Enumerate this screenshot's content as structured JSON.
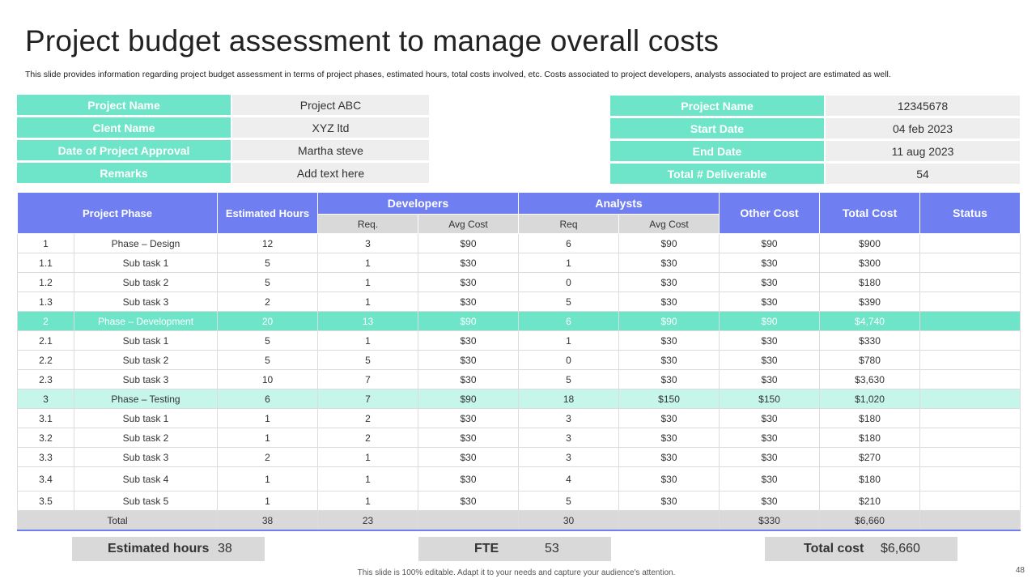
{
  "title": "Project budget assessment to manage overall costs",
  "description": "This slide provides information regarding project budget assessment in terms of project phases, estimated hours, total costs involved, etc. Costs associated to project developers, analysts associated to project are estimated as well.",
  "info_left": [
    {
      "label": "Project Name",
      "value": "Project ABC"
    },
    {
      "label": "Clent Name",
      "value": "XYZ ltd"
    },
    {
      "label": "Date of Project Approval",
      "value": "Martha steve"
    },
    {
      "label": "Remarks",
      "value": "Add text here"
    }
  ],
  "info_right": [
    {
      "label": "Project Name",
      "value": "12345678"
    },
    {
      "label": "Start Date",
      "value": "04 feb 2023"
    },
    {
      "label": "End Date",
      "value": "11 aug 2023"
    },
    {
      "label": "Total # Deliverable",
      "value": "54"
    }
  ],
  "table": {
    "headers": {
      "project_phase": "Project Phase",
      "estimated_hours": "Estimated Hours",
      "developers": "Developers",
      "analysts": "Analysts",
      "dev_req": "Req.",
      "dev_avg": "Avg Cost",
      "an_req": "Req",
      "an_avg": "Avg Cost",
      "other_cost": "Other Cost",
      "total_cost": "Total Cost",
      "status": "Status"
    },
    "rows": [
      [
        "1",
        "Phase – Design",
        "12",
        "3",
        "$90",
        "6",
        "$90",
        "$90",
        "$900",
        ""
      ],
      [
        "1.1",
        "Sub task 1",
        "5",
        "1",
        "$30",
        "1",
        "$30",
        "$30",
        "$300",
        ""
      ],
      [
        "1.2",
        "Sub task 2",
        "5",
        "1",
        "$30",
        "0",
        "$30",
        "$30",
        "$180",
        ""
      ],
      [
        "1.3",
        "Sub task 3",
        "2",
        "1",
        "$30",
        "5",
        "$30",
        "$30",
        "$390",
        ""
      ],
      [
        "2",
        "Phase – Development",
        "20",
        "13",
        "$90",
        "6",
        "$90",
        "$90",
        "$4,740",
        ""
      ],
      [
        "2.1",
        "Sub task 1",
        "5",
        "1",
        "$30",
        "1",
        "$30",
        "$30",
        "$330",
        ""
      ],
      [
        "2.2",
        "Sub task 2",
        "5",
        "5",
        "$30",
        "0",
        "$30",
        "$30",
        "$780",
        ""
      ],
      [
        "2.3",
        "Sub task 3",
        "10",
        "7",
        "$30",
        "5",
        "$30",
        "$30",
        "$3,630",
        ""
      ],
      [
        "3",
        "Phase – Testing",
        "6",
        "7",
        "$90",
        "18",
        "$150",
        "$150",
        "$1,020",
        ""
      ],
      [
        "3.1",
        "Sub task 1",
        "1",
        "2",
        "$30",
        "3",
        "$30",
        "$30",
        "$180",
        ""
      ],
      [
        "3.2",
        "Sub task 2",
        "1",
        "2",
        "$30",
        "3",
        "$30",
        "$30",
        "$180",
        ""
      ],
      [
        "3.3",
        "Sub task 3",
        "2",
        "1",
        "$30",
        "3",
        "$30",
        "$30",
        "$270",
        ""
      ],
      [
        "3.4",
        "Sub task 4",
        "1",
        "1",
        "$30",
        "4",
        "$30",
        "$30",
        "$180",
        ""
      ],
      [
        "3.5",
        "Sub task 5",
        "1",
        "1",
        "$30",
        "5",
        "$30",
        "$30",
        "$210",
        ""
      ]
    ],
    "total": [
      "",
      "Total",
      "38",
      "23",
      "",
      "30",
      "",
      "$330",
      "$6,660",
      ""
    ]
  },
  "summary": {
    "hours_label": "Estimated hours",
    "hours_value": "38",
    "fte_label": "FTE",
    "fte_value": "53",
    "cost_label": "Total cost",
    "cost_value": "$6,660"
  },
  "footer": "This slide is 100% editable. Adapt it to your needs and capture your audience's attention.",
  "page_number": "48",
  "colors": {
    "mint": "#6ee5c8",
    "mint_light": "#c6f5ea",
    "blue_header": "#6f7ff2",
    "grey_cell": "#eeeeee"
  }
}
